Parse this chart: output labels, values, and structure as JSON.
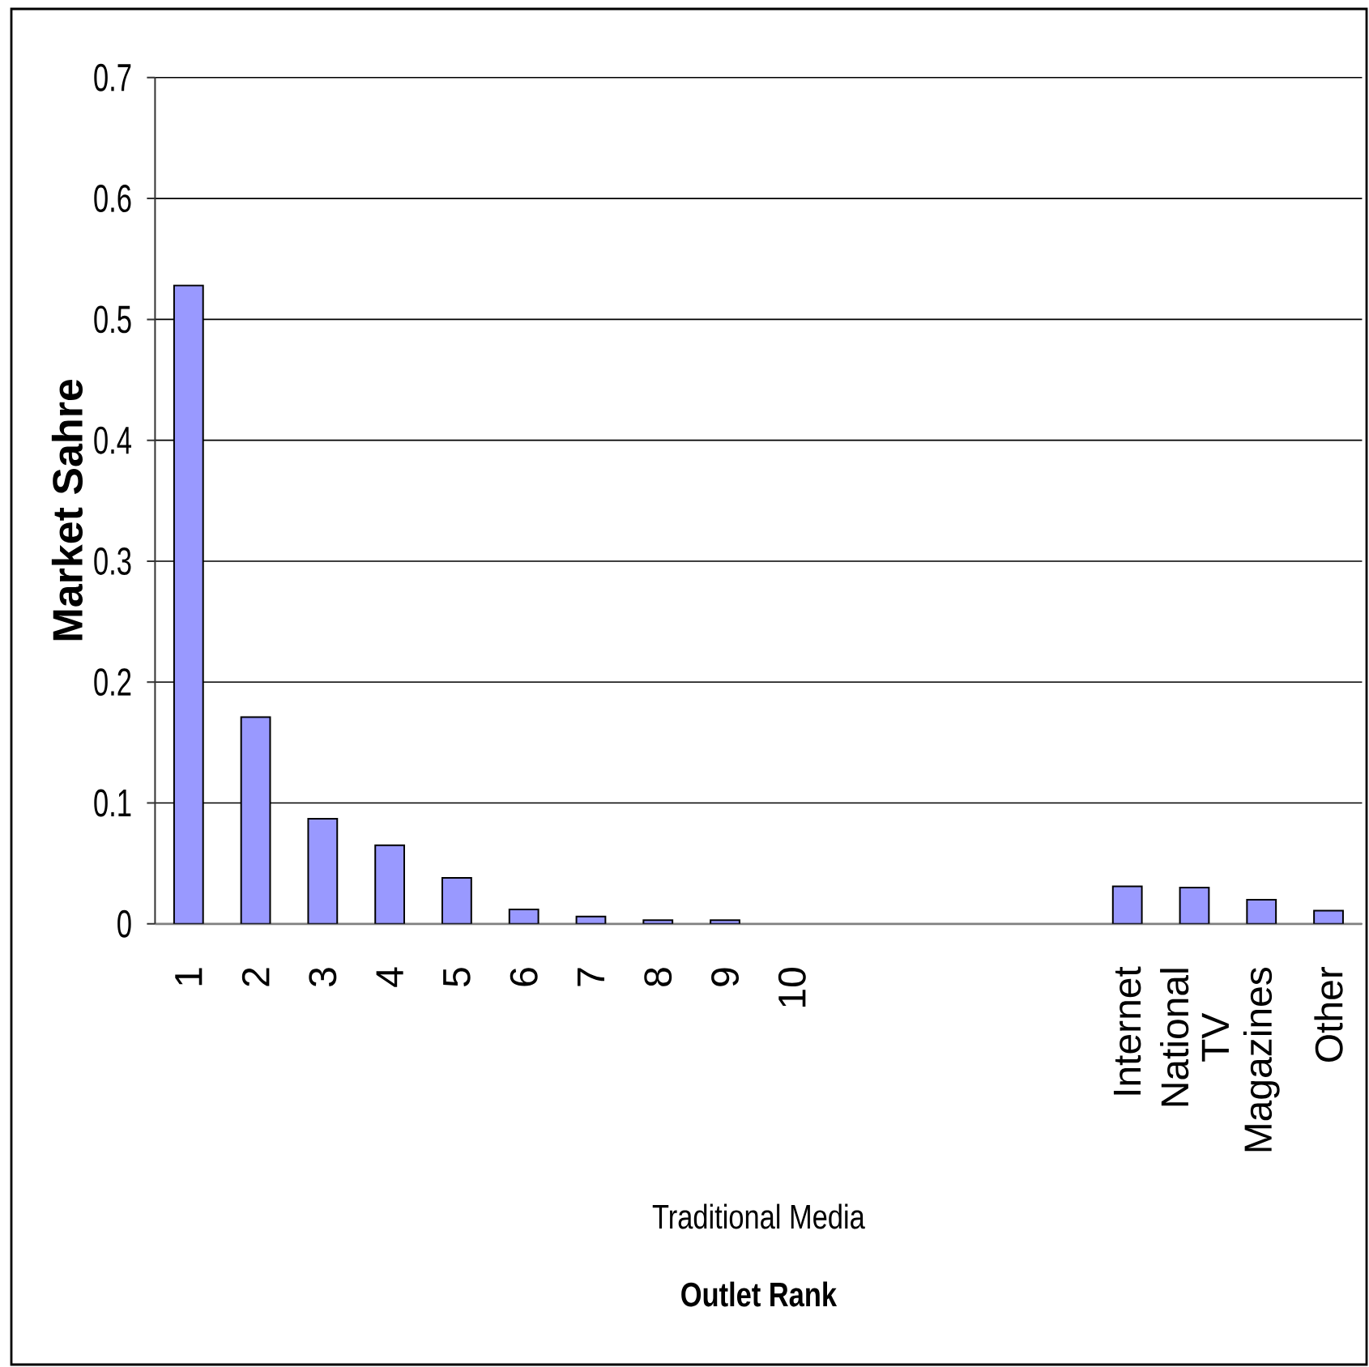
{
  "chart_data": {
    "type": "bar",
    "ylabel": "Market Sahre",
    "annotations": [
      "Traditional Media",
      "Outlet Rank"
    ],
    "categories": [
      "1",
      "2",
      "3",
      "4",
      "5",
      "6",
      "7",
      "8",
      "9",
      "10",
      null,
      null,
      null,
      null,
      "Internet",
      "National TV",
      "Magazines",
      "Other"
    ],
    "values": [
      0.528,
      0.171,
      0.087,
      0.065,
      0.038,
      0.012,
      0.006,
      0.003,
      0.003,
      null,
      null,
      null,
      null,
      null,
      0.031,
      0.03,
      0.02,
      0.011
    ],
    "color": "#9999ff",
    "ylim": [
      0,
      0.7
    ],
    "yticks": [
      0,
      0.1,
      0.2,
      0.3,
      0.4,
      0.5,
      0.6,
      0.7
    ],
    "grid": "y"
  }
}
